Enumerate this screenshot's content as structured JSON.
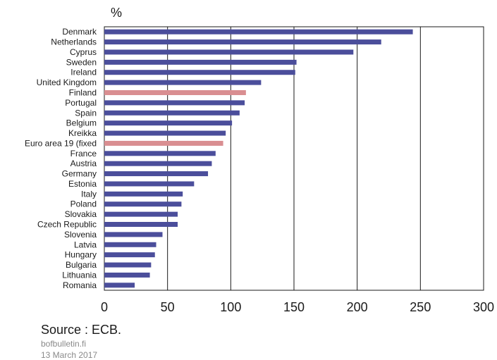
{
  "chart_data": {
    "type": "bar",
    "orientation": "horizontal",
    "unit_label": "%",
    "categories": [
      "Denmark",
      "Netherlands",
      "Cyprus",
      "Sweden",
      "Ireland",
      "United Kingdom",
      "Finland",
      "Portugal",
      "Spain",
      "Belgium",
      "Kreikka",
      "Euro area 19 (fixed",
      "France",
      "Austria",
      "Germany",
      "Estonia",
      "Italy",
      "Poland",
      "Slovakia",
      "Czech Republic",
      "Slovenia",
      "Latvia",
      "Hungary",
      "Bulgaria",
      "Lithuania",
      "Romania"
    ],
    "values": [
      244,
      219,
      197,
      152,
      151,
      124,
      112,
      111,
      107,
      101,
      96,
      94,
      88,
      85,
      82,
      71,
      62,
      61,
      58,
      58,
      46,
      41,
      40,
      37,
      36,
      24
    ],
    "highlight": [
      "Finland",
      "Euro area 19 (fixed"
    ],
    "colors": {
      "bar": "#4b4e9b",
      "highlight": "#d98e91",
      "grid": "#1a1a1a"
    },
    "xlim": [
      0,
      300
    ],
    "xticks": [
      0,
      50,
      100,
      150,
      200,
      250,
      300
    ],
    "grid": true,
    "legend": "none"
  },
  "footer": {
    "source": "Source : ECB.",
    "site": "bofbulletin.fi",
    "date": "13 March 2017"
  }
}
